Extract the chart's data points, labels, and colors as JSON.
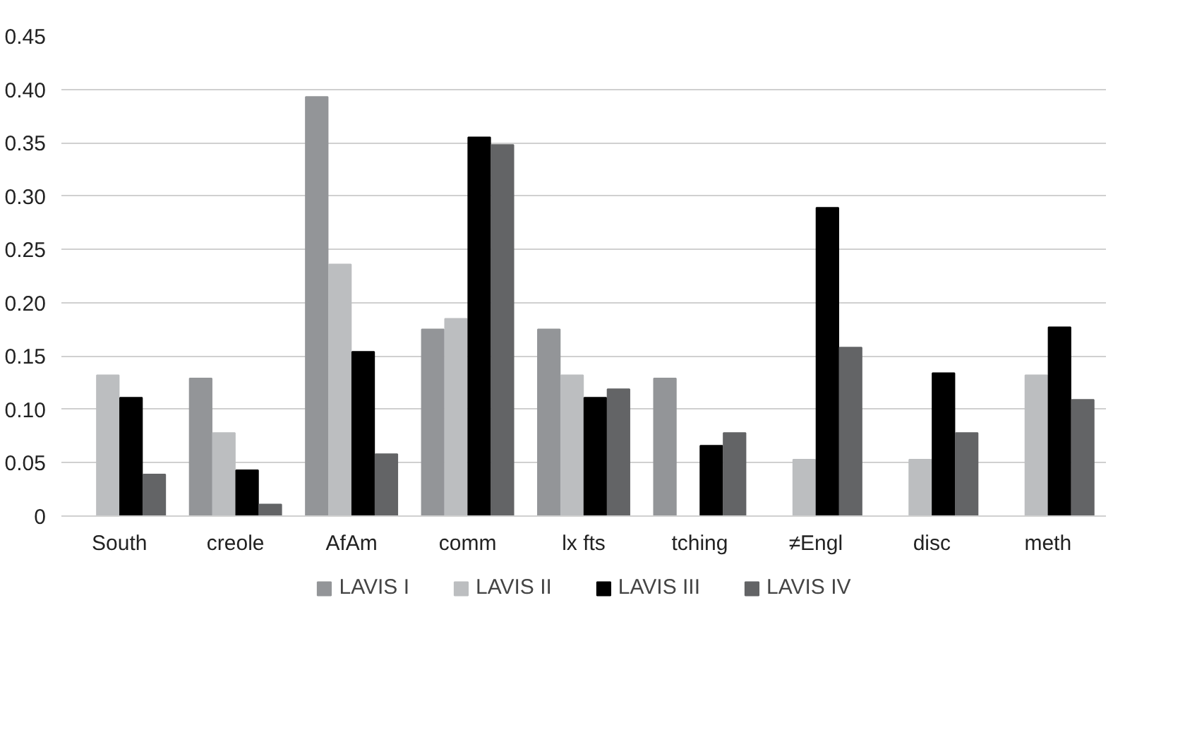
{
  "chart_data": {
    "type": "bar",
    "categories": [
      "South",
      "creole",
      "AfAm",
      "comm",
      "lx fts",
      "tching",
      "≠Engl",
      "disc",
      "meth"
    ],
    "series": [
      {
        "name": "LAVIS I",
        "color": "#939598",
        "values": [
          0,
          0.129,
          0.393,
          0.175,
          0.175,
          0.129,
          0,
          0,
          0
        ]
      },
      {
        "name": "LAVIS II",
        "color": "#bcbec0",
        "values": [
          0.132,
          0.078,
          0.236,
          0.185,
          0.132,
          0,
          0.053,
          0.053,
          0.132
        ]
      },
      {
        "name": "LAVIS III",
        "color": "#000000",
        "values": [
          0.111,
          0.043,
          0.154,
          0.355,
          0.111,
          0.066,
          0.289,
          0.134,
          0.177
        ]
      },
      {
        "name": "LAVIS IV",
        "color": "#636466",
        "values": [
          0.039,
          0.011,
          0.058,
          0.348,
          0.119,
          0.078,
          0.158,
          0.078,
          0.109
        ]
      }
    ],
    "ylim": [
      0,
      0.45
    ],
    "yticks": [
      0,
      0.05,
      {
        "value": 0.1,
        "label": "0.10"
      },
      0.15,
      {
        "value": 0.2,
        "label": "0.20"
      },
      0.25,
      {
        "value": 0.3,
        "label": "0.30"
      },
      0.35,
      {
        "value": 0.4,
        "label": "0.40"
      },
      0.45
    ],
    "grid": "y",
    "legend": "bottom"
  }
}
